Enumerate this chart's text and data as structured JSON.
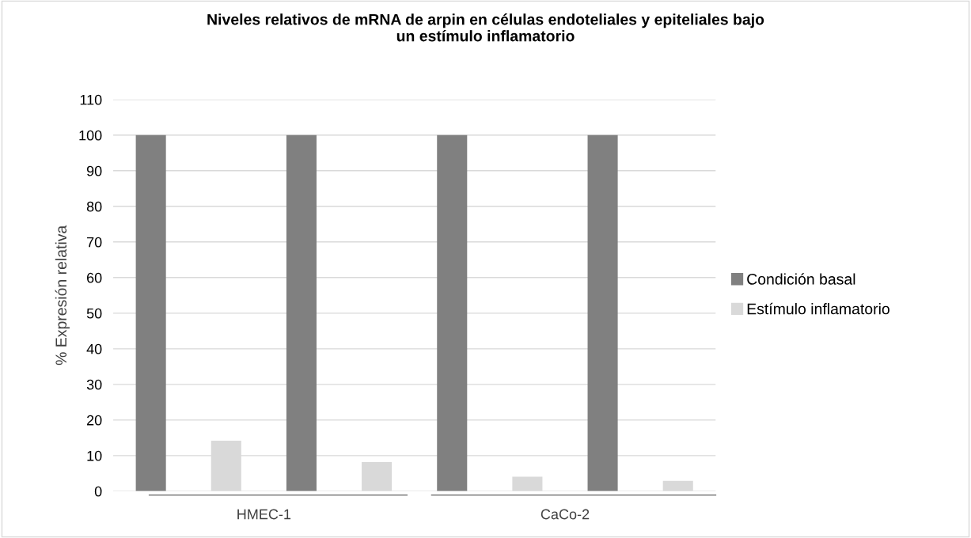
{
  "chart_data": {
    "type": "bar",
    "title": "Niveles relativos de mRNA de arpin en células endoteliales y epiteliales bajo\nun estímulo inflamatorio",
    "ylabel": "% Expresión relativa",
    "categories": [
      null,
      null,
      null,
      null,
      null,
      null,
      null,
      null
    ],
    "series": [
      {
        "name": "Condición basal",
        "color": "#808080",
        "values": [
          100,
          null,
          100,
          null,
          100,
          null,
          100,
          null
        ]
      },
      {
        "name": "Estímulo inflamatorio",
        "color": "#d9d9d9",
        "values": [
          null,
          14.2,
          null,
          8.2,
          null,
          4.1,
          null,
          2.9
        ]
      }
    ],
    "annotations": [
      "HMEC-1",
      "CaCo-2"
    ],
    "ylim": [
      0,
      110
    ],
    "yticks": [
      0,
      10,
      20,
      30,
      40,
      50,
      60,
      70,
      80,
      90,
      100,
      110
    ],
    "grid": "y",
    "legend": "right"
  }
}
